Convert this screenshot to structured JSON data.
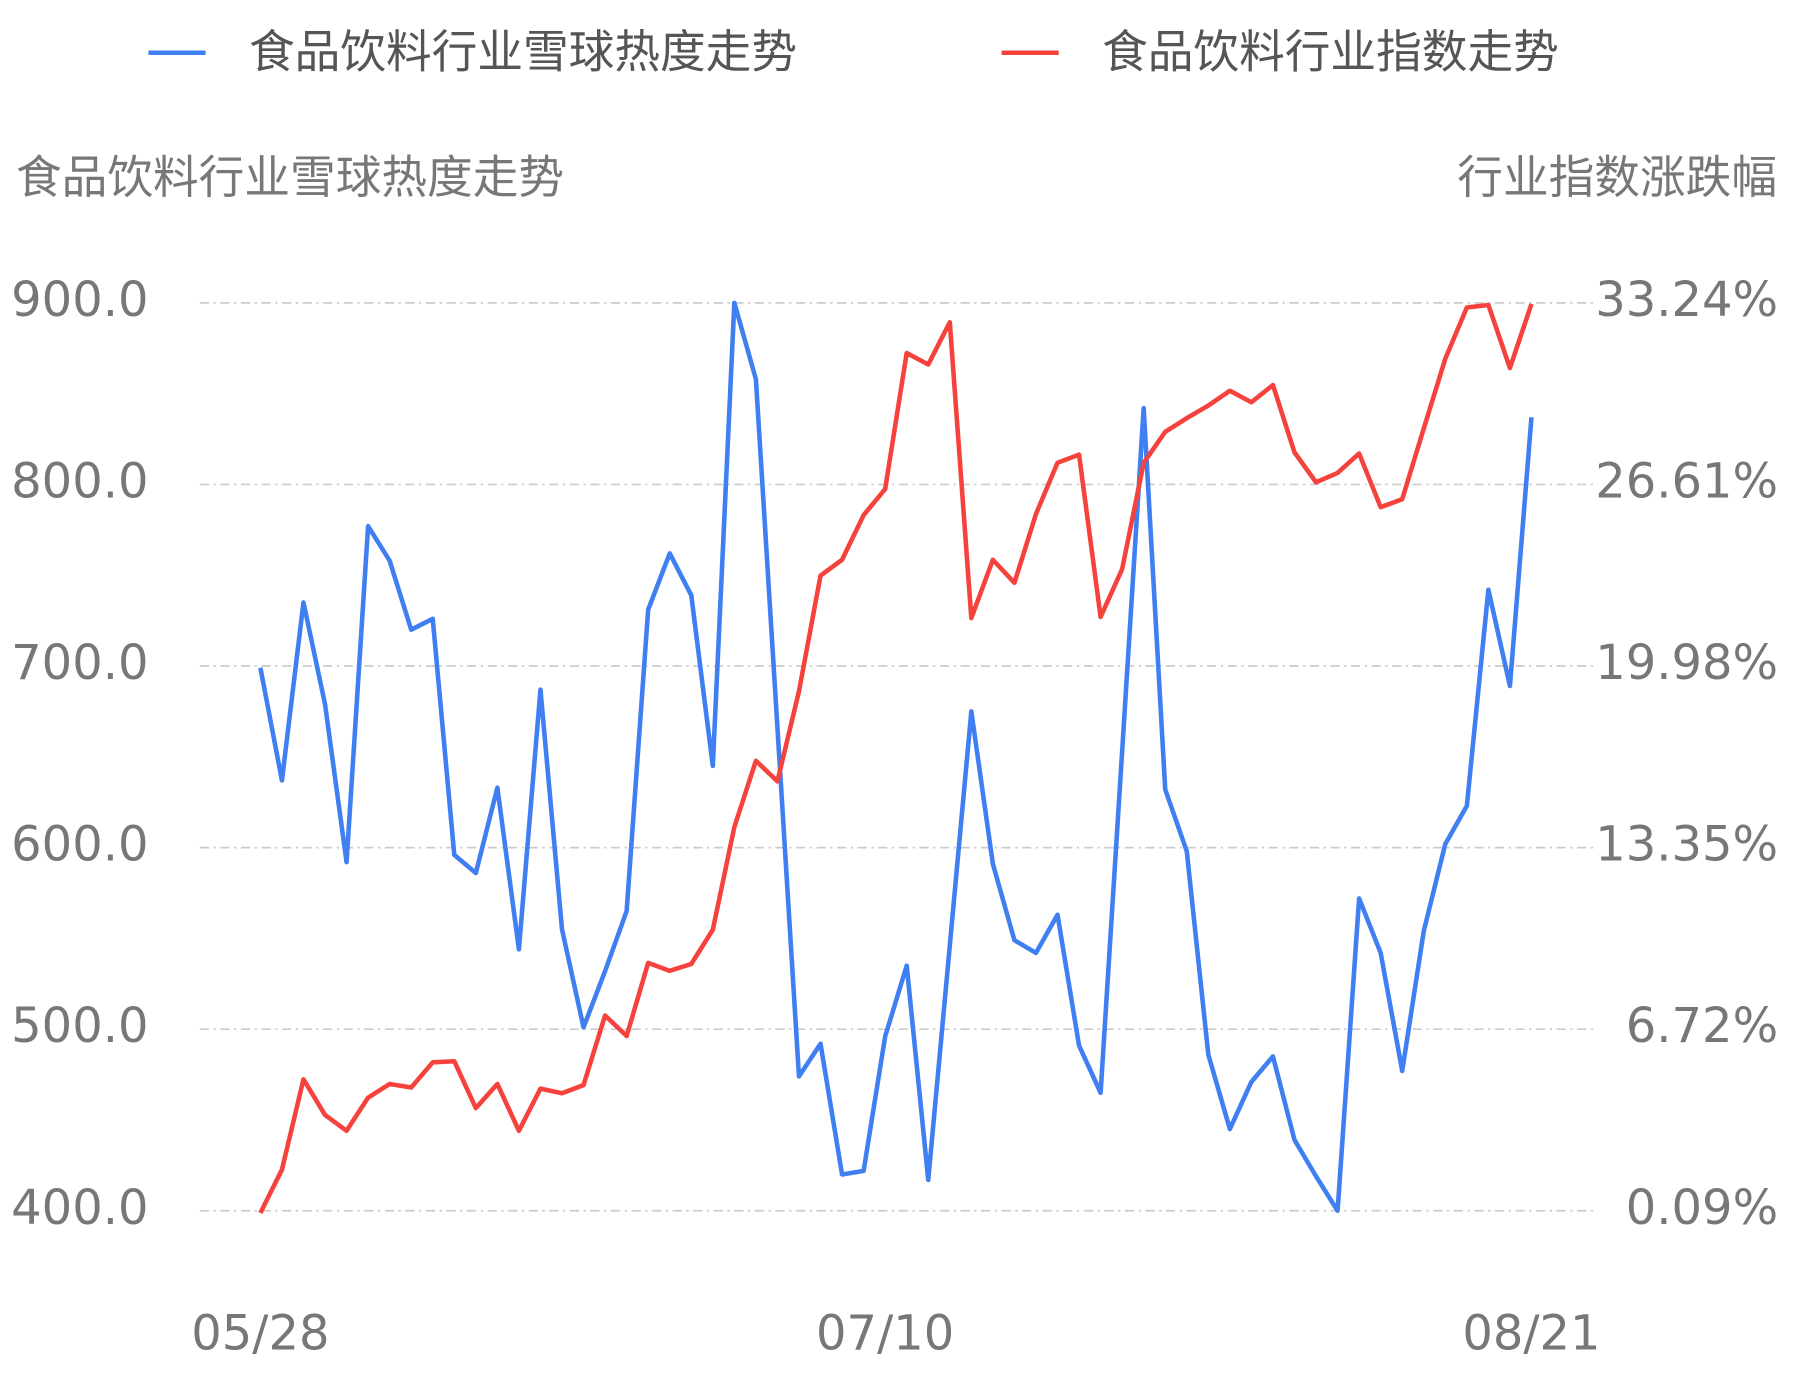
{
  "chart_data": {
    "type": "line",
    "y_title": "食品饮料行业雪球热度走势",
    "y2_title": "行业指数涨跌幅",
    "categories": [
      "05/28",
      null,
      null,
      null,
      null,
      null,
      null,
      null,
      null,
      null,
      null,
      null,
      null,
      null,
      null,
      null,
      null,
      null,
      null,
      null,
      null,
      null,
      null,
      null,
      null,
      null,
      null,
      null,
      null,
      "07/10",
      null,
      null,
      null,
      null,
      null,
      null,
      null,
      null,
      null,
      null,
      null,
      null,
      null,
      null,
      null,
      null,
      null,
      null,
      null,
      null,
      null,
      null,
      null,
      null,
      null,
      null,
      null,
      null,
      null,
      "08/21"
    ],
    "series": [
      {
        "name": "食品饮料行业雪球热度走势",
        "color": "#3f7ff2",
        "values": [
          699,
          637,
          735,
          679,
          592,
          777,
          758,
          720,
          726,
          596,
          586,
          633,
          544,
          687,
          555,
          501,
          532,
          565,
          731,
          762,
          739,
          645,
          900,
          858,
          666,
          474,
          492,
          420,
          422,
          496,
          535,
          417,
          546,
          675,
          591,
          549,
          542,
          563,
          491,
          465,
          653,
          842,
          632,
          598,
          486,
          445,
          471,
          485,
          439,
          419,
          400,
          572,
          542,
          477,
          554,
          602,
          623,
          742,
          689,
          837
        ]
      },
      {
        "name": "食品饮料行业指数走势",
        "color": "#f5423c",
        "axis": "y2",
        "values": [
          0.01,
          1.59,
          4.89,
          3.59,
          3.01,
          4.22,
          4.72,
          4.59,
          5.51,
          5.55,
          3.84,
          4.72,
          3.01,
          4.55,
          4.38,
          4.68,
          7.22,
          6.47,
          9.14,
          8.85,
          9.1,
          10.35,
          14.1,
          16.52,
          15.77,
          19.06,
          23.28,
          23.86,
          25.49,
          26.44,
          31.41,
          30.99,
          32.53,
          21.73,
          23.86,
          23.02,
          25.53,
          27.4,
          27.7,
          21.77,
          23.52,
          27.4,
          28.53,
          29.03,
          29.49,
          30.03,
          29.61,
          30.24,
          27.78,
          26.69,
          27.03,
          27.74,
          25.78,
          26.07,
          28.65,
          31.2,
          33.07,
          33.16,
          30.86,
          33.2
        ]
      }
    ],
    "ylim": [
      400,
      900
    ],
    "yticks": [
      {
        "value": 400,
        "label": "400.0"
      },
      {
        "value": 500,
        "label": "500.0"
      },
      {
        "value": 600,
        "label": "600.0"
      },
      {
        "value": 700,
        "label": "700.0"
      },
      {
        "value": 800,
        "label": "800.0"
      },
      {
        "value": 900,
        "label": "900.0"
      }
    ],
    "y2lim": [
      0.09,
      33.24
    ],
    "y2ticks": [
      {
        "value": 0.09,
        "label": "0.09%"
      },
      {
        "value": 6.72,
        "label": "6.72%"
      },
      {
        "value": 13.35,
        "label": "13.35%"
      },
      {
        "value": 19.98,
        "label": "19.98%"
      },
      {
        "value": 26.61,
        "label": "26.61%"
      },
      {
        "value": 33.24,
        "label": "33.24%"
      }
    ],
    "grid": true
  }
}
